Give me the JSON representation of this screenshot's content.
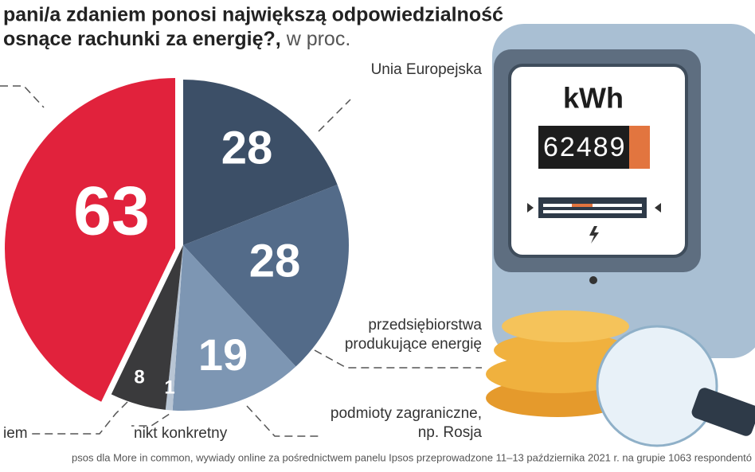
{
  "chart_data": {
    "type": "pie",
    "title": "pani/a zdaniem ponosi największą odpowiedzialność",
    "subtitle": "osnące rachunki za energię?,",
    "unit_note": "w proc.",
    "categories": [
      "Unia Europejska",
      "przedsiębiorstwa produkujące energię",
      "podmioty zagraniczne, np. Rosja",
      "nikt konkretny",
      "iem",
      null
    ],
    "values": [
      28,
      28,
      19,
      1,
      8,
      63
    ],
    "colors": [
      "#3c4f67",
      "#536b89",
      "#7d96b3",
      "#b8c5d4",
      "#3a3a3c",
      "#e1223c"
    ],
    "source": "psos dla More in common, wywiady online za pośrednictwem panelu Ipsos przeprowadzone 11–13 października 2021 r. na grupie 1063 respondentó"
  },
  "illustration": {
    "unit": "kWh",
    "reading": "62489"
  }
}
